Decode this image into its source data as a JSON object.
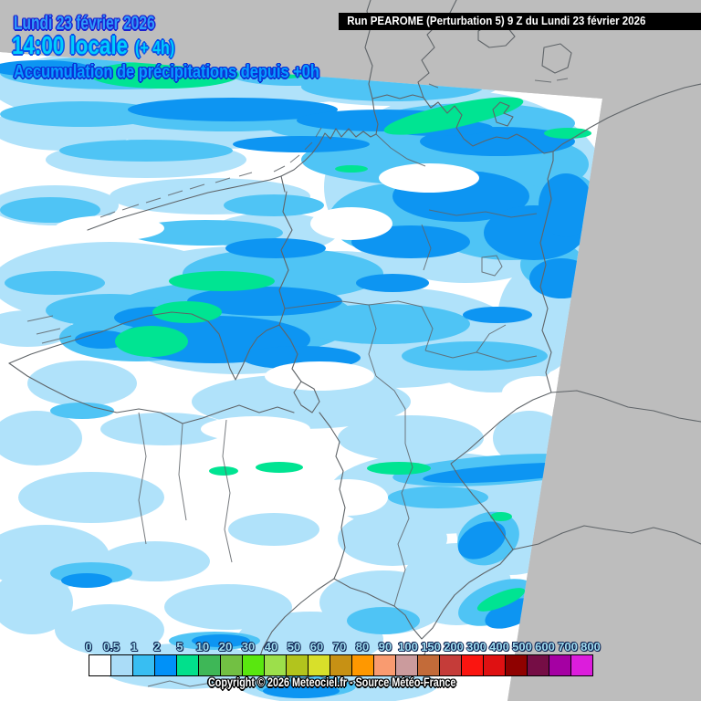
{
  "header": {
    "date": "Lundi 23 février 2026",
    "time": "14:00 locale",
    "offset": "(+ 4h)",
    "subtitle": "Accumulation de précipitations depuis +0h"
  },
  "run_info": "Run PEAROME (Perturbation 5) 9 Z du Lundi 23 février 2026",
  "legend": {
    "values": [
      "0",
      "0.5",
      "1",
      "2",
      "5",
      "10",
      "20",
      "30",
      "40",
      "50",
      "60",
      "70",
      "80",
      "90",
      "100",
      "150",
      "200",
      "300",
      "400",
      "500",
      "600",
      "700",
      "800"
    ],
    "colors": [
      "#ffffff",
      "#aadcf7",
      "#38bef2",
      "#0091f8",
      "#01e08c",
      "#3eb757",
      "#72c043",
      "#59e70f",
      "#9cdf4b",
      "#b2c41d",
      "#d8e02a",
      "#c79114",
      "#ff9800",
      "#f99b70",
      "#cb9b9d",
      "#c36b39",
      "#c53c39",
      "#fb1510",
      "#df1112",
      "#8f0100",
      "#750d45",
      "#a500a3",
      "#dc1ddc"
    ]
  },
  "copyright": "Copyright © 2026 Meteociel.fr - Source Météo-France",
  "map": {
    "colors": {
      "outside_domain": "#bdbdbd",
      "border": "#5f6468",
      "precip_light": "#b0e2fa",
      "precip_medium": "#4fc4f5",
      "precip_dark": "#0d95f2",
      "precip_green": "#00e492"
    }
  }
}
